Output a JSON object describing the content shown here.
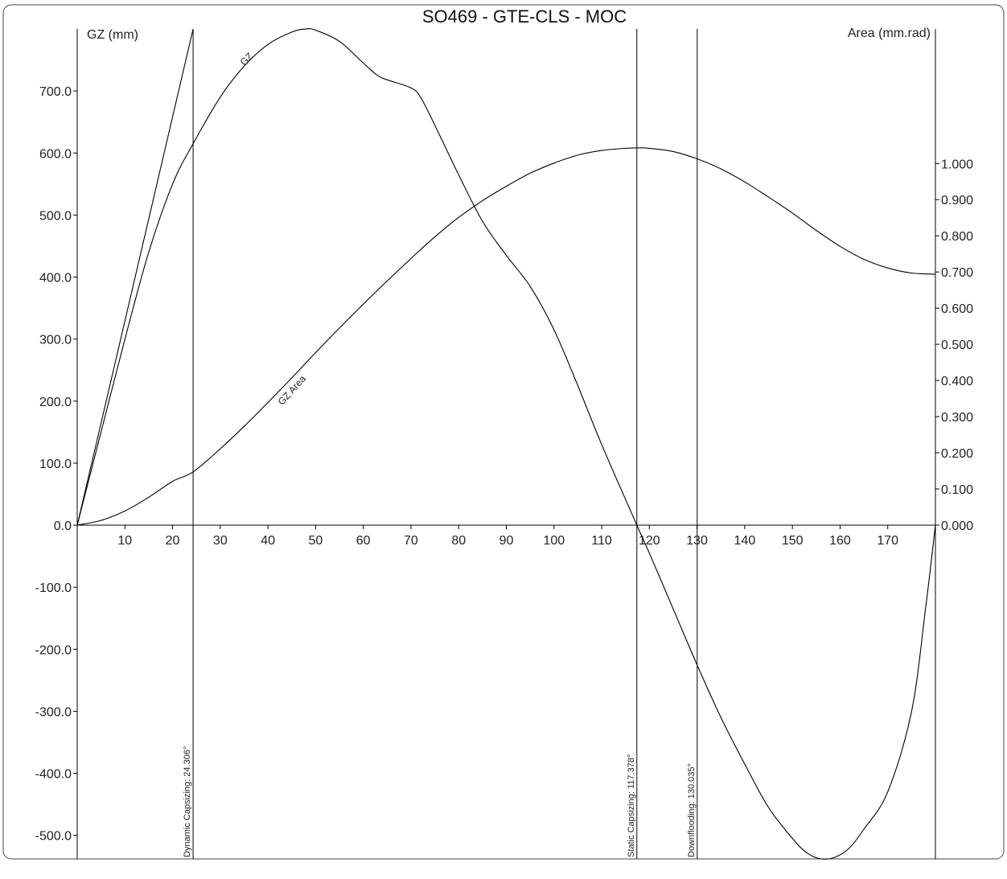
{
  "chart_data": {
    "type": "line",
    "title": "SO469 - GTE-CLS - MOC",
    "ylabel": "GZ (mm)",
    "y2label": "Area (mm.rad)",
    "x_ticks": [
      10,
      20,
      30,
      40,
      50,
      60,
      70,
      80,
      90,
      100,
      110,
      120,
      130,
      140,
      150,
      160,
      170
    ],
    "y_ticks": [
      -500,
      -400,
      -300,
      -200,
      -100,
      0,
      100,
      200,
      300,
      400,
      500,
      600,
      700
    ],
    "y_tick_labels": [
      "-500.0",
      "-400.0",
      "-300.0",
      "-200.0",
      "-100.0",
      "0.0",
      "100.0",
      "200.0",
      "300.0",
      "400.0",
      "500.0",
      "600.0",
      "700.0"
    ],
    "y2_ticks": [
      0,
      0.1,
      0.2,
      0.3,
      0.4,
      0.5,
      0.6,
      0.7,
      0.8,
      0.9,
      1.0
    ],
    "y2_tick_labels": [
      "0.000",
      "0.100",
      "0.200",
      "0.300",
      "0.400",
      "0.500",
      "0.600",
      "0.700",
      "0.800",
      "0.900",
      "1.000"
    ],
    "xlim": [
      0,
      180
    ],
    "ylim": [
      -538,
      800
    ],
    "y2lim": [
      -0.923,
      1.372
    ],
    "grid": false,
    "series": [
      {
        "name": "GZ",
        "axis": "left",
        "x": [
          0,
          5,
          10,
          15,
          20,
          24.306,
          30,
          35,
          40,
          45,
          48,
          50,
          55,
          60,
          63,
          65,
          70,
          72,
          75,
          80,
          85,
          90,
          95,
          100,
          105,
          110,
          117.378,
          120,
          125,
          130,
          135,
          140,
          145,
          150,
          153,
          156,
          159,
          162,
          165,
          170,
          175,
          178,
          180
        ],
        "y": [
          0,
          150,
          300,
          440,
          550,
          615,
          690,
          740,
          775,
          795,
          800,
          798,
          780,
          745,
          725,
          718,
          705,
          690,
          645,
          565,
          490,
          435,
          385,
          315,
          225,
          130,
          0,
          -45,
          -135,
          -225,
          -310,
          -385,
          -455,
          -505,
          -528,
          -538,
          -535,
          -520,
          -490,
          -430,
          -300,
          -130,
          0
        ]
      },
      {
        "name": "GZ Area",
        "axis": "right",
        "x": [
          0,
          5,
          10,
          15,
          20,
          24.306,
          30,
          35,
          40,
          45,
          50,
          55,
          60,
          65,
          70,
          75,
          80,
          85,
          90,
          95,
          100,
          105,
          110,
          115,
          117.378,
          120,
          125,
          130,
          135,
          140,
          145,
          150,
          155,
          160,
          165,
          170,
          175,
          180
        ],
        "y": [
          0,
          0.013,
          0.039,
          0.077,
          0.121,
          0.147,
          0.211,
          0.273,
          0.339,
          0.407,
          0.477,
          0.545,
          0.611,
          0.675,
          0.737,
          0.797,
          0.851,
          0.897,
          0.937,
          0.973,
          1.001,
          1.023,
          1.036,
          1.042,
          1.043,
          1.042,
          1.033,
          1.013,
          0.985,
          0.949,
          0.907,
          0.863,
          0.815,
          0.771,
          0.735,
          0.711,
          0.697,
          0.694
        ]
      },
      {
        "name": "",
        "axis": "left",
        "x": [
          0,
          24.306
        ],
        "y": [
          0,
          800
        ]
      }
    ],
    "vertical_markers": [
      {
        "x": 24.306,
        "label": "Dynamic Capsizing: 24.306°"
      },
      {
        "x": 117.378,
        "label": "Static Capsizing: 117.378°"
      },
      {
        "x": 130.035,
        "label": "Downflooding: 130.035°"
      }
    ],
    "curve_labels": [
      {
        "text": "GZ",
        "x": 35,
        "y": 740
      },
      {
        "text": "GZ Area",
        "x": 43,
        "y": 0.33
      }
    ]
  }
}
